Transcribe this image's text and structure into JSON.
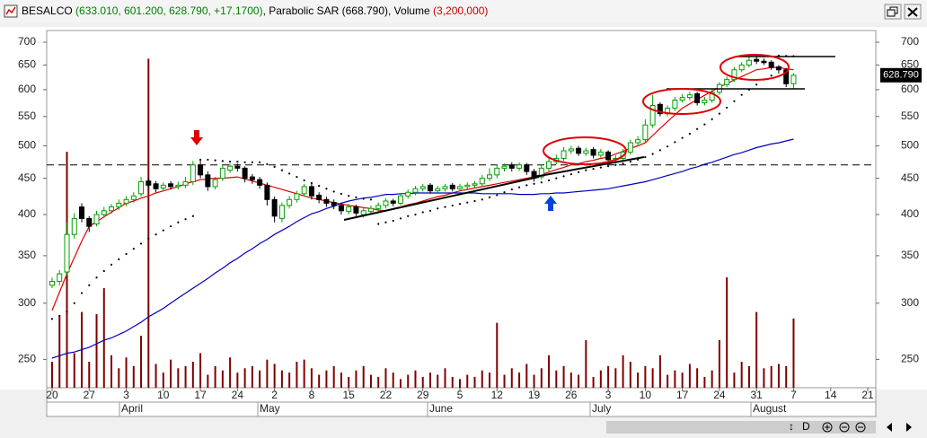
{
  "header": {
    "symbol": "BESALCO",
    "ohlc": "(633.010, 601.200, 628.790, +17.1700)",
    "sar_name": "Parabolic SAR",
    "sar_value": "(668.790)",
    "volume_name": "Volume",
    "volume_value": "(3,200,000)"
  },
  "toolbar": {
    "mode": "D"
  },
  "chart_data": {
    "type": "candlestick",
    "log_scale": true,
    "ylim": [
      228,
      727
    ],
    "yticks": [
      250,
      300,
      350,
      400,
      450,
      500,
      550,
      600,
      650,
      700
    ],
    "up_color": "#00a000",
    "down_color": "#000000",
    "volume_color": "#800000",
    "volume_ylim": [
      0,
      16500000
    ],
    "reference_line": 470,
    "last_price_label": "628.790",
    "months": [
      "April",
      "May",
      "June",
      "July",
      "August"
    ],
    "categories": [
      "20",
      null,
      null,
      null,
      null,
      "27",
      null,
      null,
      null,
      null,
      "3",
      null,
      null,
      null,
      null,
      "10",
      null,
      null,
      null,
      null,
      "17",
      null,
      null,
      null,
      null,
      "24",
      null,
      null,
      null,
      null,
      "2",
      null,
      null,
      null,
      null,
      "8",
      null,
      null,
      null,
      null,
      "15",
      null,
      null,
      null,
      null,
      "22",
      null,
      null,
      null,
      null,
      "29",
      null,
      null,
      null,
      null,
      "5",
      null,
      null,
      null,
      null,
      "12",
      null,
      null,
      null,
      null,
      "19",
      null,
      null,
      null,
      null,
      "26",
      null,
      null,
      null,
      null,
      "3",
      null,
      null,
      null,
      null,
      "10",
      null,
      null,
      null,
      null,
      "17",
      null,
      null,
      null,
      null,
      "24",
      null,
      null,
      null,
      null,
      "31",
      null,
      null,
      null,
      null,
      "7",
      null,
      null,
      null,
      null,
      "14",
      null,
      null,
      null,
      null,
      "21"
    ],
    "open": [
      318,
      322,
      332,
      375,
      410,
      395,
      388,
      400,
      405,
      410,
      415,
      420,
      428,
      446,
      442,
      436,
      442,
      438,
      440,
      445,
      470,
      455,
      438,
      450,
      462,
      468,
      465,
      452,
      448,
      440,
      420,
      395,
      412,
      420,
      428,
      438,
      426,
      420,
      416,
      412,
      404,
      410,
      400,
      404,
      408,
      412,
      418,
      415,
      425,
      430,
      435,
      440,
      432,
      435,
      440,
      435,
      438,
      440,
      442,
      450,
      455,
      465,
      470,
      465,
      470,
      460,
      452,
      465,
      475,
      480,
      492,
      496,
      488,
      494,
      485,
      490,
      478,
      480,
      490,
      505,
      510,
      535,
      572,
      555,
      565,
      580,
      585,
      592,
      575,
      580,
      595,
      610,
      620,
      640,
      650,
      662,
      658,
      656,
      646,
      640,
      611.62,
      null,
      null,
      null,
      null,
      null,
      null,
      null,
      null,
      null,
      null
    ],
    "high": [
      326,
      334,
      390,
      402,
      415,
      398,
      405,
      410,
      414,
      420,
      425,
      430,
      452,
      450,
      446,
      444,
      446,
      445,
      452,
      476,
      478,
      460,
      452,
      470,
      472,
      472,
      468,
      456,
      452,
      444,
      424,
      416,
      425,
      432,
      442,
      442,
      430,
      424,
      420,
      416,
      414,
      413,
      409,
      412,
      416,
      422,
      421,
      429,
      434,
      439,
      442,
      443,
      439,
      442,
      443,
      442,
      444,
      446,
      455,
      465,
      470,
      472,
      474,
      474,
      473,
      464,
      470,
      480,
      486,
      498,
      500,
      500,
      497,
      498,
      495,
      493,
      485,
      495,
      510,
      516,
      545,
      590,
      576,
      570,
      586,
      592,
      596,
      596,
      586,
      600,
      615,
      626,
      646,
      656,
      668,
      670,
      664,
      660,
      650,
      644,
      633.01,
      null,
      null,
      null,
      null,
      null,
      null,
      null,
      null,
      null,
      null
    ],
    "low": [
      315,
      318,
      328,
      370,
      390,
      378,
      385,
      396,
      401,
      406,
      411,
      416,
      424,
      436,
      430,
      432,
      434,
      434,
      436,
      440,
      450,
      432,
      434,
      446,
      458,
      460,
      444,
      442,
      435,
      412,
      390,
      390,
      408,
      416,
      424,
      420,
      415,
      410,
      407,
      400,
      400,
      398,
      396,
      400,
      404,
      408,
      411,
      412,
      421,
      426,
      431,
      428,
      429,
      431,
      431,
      432,
      434,
      436,
      438,
      446,
      450,
      460,
      460,
      461,
      455,
      445,
      448,
      460,
      471,
      476,
      487,
      484,
      484,
      480,
      481,
      474,
      474,
      476,
      486,
      500,
      506,
      530,
      550,
      550,
      560,
      575,
      580,
      570,
      570,
      575,
      590,
      605,
      615,
      635,
      645,
      652,
      650,
      640,
      632,
      605,
      601.2,
      null,
      null,
      null,
      null,
      null,
      null,
      null,
      null,
      null,
      null
    ],
    "close": [
      322,
      330,
      375,
      395,
      395,
      385,
      400,
      405,
      410,
      415,
      420,
      425,
      445,
      440,
      435,
      440,
      438,
      440,
      445,
      470,
      455,
      438,
      448,
      465,
      468,
      465,
      450,
      448,
      440,
      420,
      398,
      412,
      420,
      428,
      438,
      425,
      420,
      415,
      412,
      405,
      410,
      402,
      405,
      408,
      412,
      418,
      415,
      425,
      430,
      435,
      438,
      432,
      435,
      438,
      435,
      438,
      440,
      442,
      450,
      455,
      465,
      468,
      465,
      470,
      460,
      452,
      465,
      475,
      480,
      492,
      495,
      488,
      492,
      485,
      490,
      478,
      480,
      490,
      505,
      510,
      535,
      570,
      555,
      565,
      580,
      585,
      590,
      575,
      580,
      595,
      610,
      620,
      640,
      650,
      660,
      658,
      655,
      645,
      640,
      611.62,
      628.79,
      null,
      null,
      null,
      null,
      null,
      null,
      null,
      null,
      null,
      null
    ],
    "volume": [
      1200000,
      3300000,
      10900000,
      1600000,
      3500000,
      1200000,
      3400000,
      4600000,
      1500000,
      900000,
      1400000,
      1000000,
      2400000,
      15200000,
      1100000,
      700000,
      1300000,
      900000,
      1000000,
      1200000,
      1600000,
      600000,
      1000000,
      800000,
      1400000,
      700000,
      900000,
      1000000,
      800000,
      1300000,
      1100000,
      800000,
      700000,
      1200000,
      1300000,
      900000,
      600000,
      800000,
      1000000,
      700000,
      500000,
      800000,
      1000000,
      600000,
      500000,
      900000,
      700000,
      400000,
      600000,
      800000,
      500000,
      700000,
      600000,
      900000,
      500000,
      400000,
      600000,
      500000,
      800000,
      700000,
      3000000,
      600000,
      900000,
      700000,
      1100000,
      600000,
      900000,
      1500000,
      800000,
      1000000,
      700000,
      600000,
      2200000,
      500000,
      800000,
      1000000,
      900000,
      1500000,
      1200000,
      700000,
      1000000,
      900000,
      1500000,
      600000,
      800000,
      700000,
      1100000,
      900000,
      500000,
      800000,
      2200000,
      5100000,
      700000,
      1200000,
      1000000,
      3500000,
      900000,
      1000000,
      1100000,
      1000000,
      3200000,
      null,
      null,
      null,
      null,
      null,
      null,
      null,
      null,
      null,
      null
    ],
    "moving_averages": [
      {
        "color": "#e00000",
        "values": [
          293,
          311,
          330,
          348,
          367,
          385,
          391,
          397,
          403,
          409,
          415,
          418,
          422,
          425,
          429,
          432,
          435,
          438,
          442,
          445,
          448,
          449,
          450,
          450,
          451,
          452,
          449,
          446,
          443,
          440,
          437,
          434,
          431,
          428,
          425,
          422,
          420,
          418,
          416,
          414,
          412,
          411,
          409,
          408,
          406,
          405,
          408,
          410,
          413,
          415,
          418,
          421,
          424,
          426,
          429,
          432,
          434,
          436,
          438,
          440,
          442,
          444,
          446,
          448,
          450,
          452,
          456,
          459,
          463,
          466,
          470,
          472,
          475,
          477,
          480,
          482,
          487,
          491,
          496,
          500,
          505,
          517,
          529,
          541,
          553,
          565,
          573,
          581,
          589,
          597,
          605,
          612,
          619,
          626,
          633,
          640,
          642,
          645,
          645,
          642,
          640,
          null,
          null,
          null,
          null,
          null,
          null,
          null,
          null,
          null,
          null
        ]
      },
      {
        "color": "#0000c0",
        "values": [
          251,
          253,
          255,
          256,
          258,
          260,
          263,
          266,
          268,
          271,
          274,
          278,
          282,
          287,
          291,
          295,
          300,
          305,
          310,
          315,
          320,
          325,
          331,
          336,
          342,
          347,
          353,
          358,
          364,
          369,
          375,
          380,
          385,
          391,
          396,
          401,
          404,
          408,
          411,
          415,
          418,
          420,
          422,
          423,
          425,
          427,
          427,
          428,
          428,
          429,
          429,
          429,
          429,
          429,
          429,
          429,
          429,
          429,
          428,
          428,
          428,
          428,
          428,
          427,
          427,
          427,
          428,
          428,
          429,
          429,
          430,
          431,
          432,
          433,
          434,
          435,
          437,
          439,
          441,
          443,
          445,
          448,
          451,
          454,
          457,
          460,
          464,
          467,
          471,
          474,
          478,
          482,
          486,
          489,
          493,
          497,
          500,
          503,
          505,
          508,
          511,
          null,
          null,
          null,
          null,
          null,
          null,
          null,
          null,
          null,
          null
        ]
      }
    ],
    "sar": {
      "color": "#000000",
      "values": [
        285,
        288,
        292,
        300,
        310,
        318,
        326,
        333,
        340,
        346,
        352,
        358,
        364,
        370,
        375,
        380,
        385,
        390,
        394,
        398,
        478,
        478,
        477,
        476,
        475,
        475,
        474,
        474,
        474,
        471,
        467,
        462,
        457,
        452,
        447,
        443,
        439,
        435,
        431,
        428,
        425,
        423,
        421,
        420,
        388,
        390,
        392,
        395,
        398,
        400,
        403,
        405,
        408,
        410,
        412,
        414,
        416,
        418,
        420,
        423,
        426,
        430,
        434,
        437,
        440,
        442,
        444,
        447,
        450,
        453,
        456,
        459,
        462,
        464,
        466,
        468,
        470,
        472,
        475,
        478,
        482,
        487,
        493,
        499,
        506,
        513,
        520,
        528,
        536,
        545,
        555,
        566,
        578,
        590,
        600,
        610,
        620,
        628,
        670,
        669.4,
        668.79,
        null,
        null,
        null,
        null,
        null,
        null,
        null,
        null,
        null,
        null
      ]
    }
  }
}
